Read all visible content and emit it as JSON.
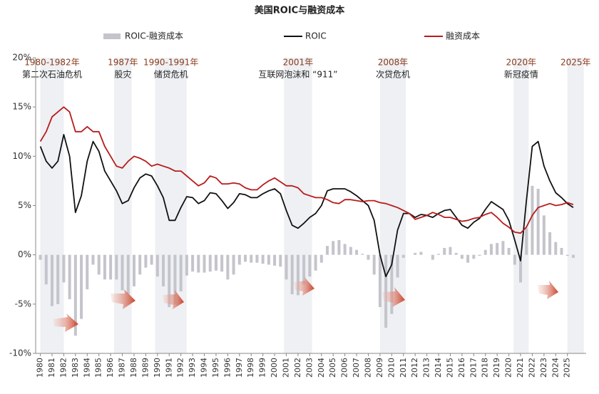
{
  "chart_data": {
    "type": "line_bar",
    "title": "美国ROIC与融资成本",
    "xlim": [
      1979.6,
      2026.6
    ],
    "xticks": [
      1980,
      1981,
      1982,
      1983,
      1984,
      1985,
      1986,
      1987,
      1988,
      1989,
      1990,
      1991,
      1992,
      1993,
      1994,
      1995,
      1996,
      1997,
      1998,
      1999,
      2000,
      2001,
      2002,
      2003,
      2004,
      2005,
      2006,
      2007,
      2008,
      2009,
      2010,
      2011,
      2012,
      2013,
      2014,
      2015,
      2016,
      2017,
      2018,
      2019,
      2020,
      2021,
      2022,
      2023,
      2024,
      2025
    ],
    "ylim": [
      -10,
      20
    ],
    "yticks": [
      {
        "value": -10,
        "label": "-10%"
      },
      {
        "value": -5,
        "label": "-5%"
      },
      {
        "value": 0,
        "label": "0%"
      },
      {
        "value": 5,
        "label": "5%"
      },
      {
        "value": 10,
        "label": "10%"
      },
      {
        "value": 15,
        "label": "15%"
      },
      {
        "value": 20,
        "label": "20%"
      }
    ],
    "x": [
      1980,
      1980.5,
      1981,
      1981.5,
      1982,
      1982.5,
      1983,
      1983.5,
      1984,
      1984.5,
      1985,
      1985.5,
      1986,
      1986.5,
      1987,
      1987.5,
      1988,
      1988.5,
      1989,
      1989.5,
      1990,
      1990.5,
      1991,
      1991.5,
      1992,
      1992.5,
      1993,
      1993.5,
      1994,
      1994.5,
      1995,
      1995.5,
      1996,
      1996.5,
      1997,
      1997.5,
      1998,
      1998.5,
      1999,
      1999.5,
      2000,
      2000.5,
      2001,
      2001.5,
      2002,
      2002.5,
      2003,
      2003.5,
      2004,
      2004.5,
      2005,
      2005.5,
      2006,
      2006.5,
      2007,
      2007.5,
      2008,
      2008.5,
      2009,
      2009.5,
      2010,
      2010.5,
      2011,
      2011.5,
      2012,
      2012.5,
      2013,
      2013.5,
      2014,
      2014.5,
      2015,
      2015.5,
      2016,
      2016.5,
      2017,
      2017.5,
      2018,
      2018.5,
      2019,
      2019.5,
      2020,
      2020.5,
      2021,
      2021.5,
      2022,
      2022.5,
      2023,
      2023.5,
      2024,
      2024.5,
      2025,
      2025.5
    ],
    "series": [
      {
        "name": "ROIC-融资成本",
        "kind": "bar",
        "color": "#c4c4cc",
        "values": [
          -0.5,
          -3,
          -5.2,
          -5,
          -2.8,
          -4.5,
          -8.2,
          -6.5,
          -3.5,
          -1,
          -2,
          -2.5,
          -2.5,
          -2.5,
          -3.6,
          -4,
          -3.2,
          -2,
          -1.3,
          -1,
          -2.2,
          -3.2,
          -5.3,
          -5,
          -3.7,
          -2.1,
          -1.7,
          -1.8,
          -1.8,
          -1.7,
          -1.6,
          -1.7,
          -2.5,
          -2,
          -1,
          -0.7,
          -0.8,
          -0.8,
          -0.9,
          -1,
          -1.1,
          -1.2,
          -2.5,
          -4,
          -4.1,
          -3,
          -2.2,
          -1.6,
          -0.8,
          0.9,
          1.4,
          1.5,
          1.1,
          0.8,
          0.5,
          0.1,
          -0.5,
          -2,
          -5.3,
          -7.4,
          -6,
          -2.3,
          -0.3,
          0,
          0.2,
          0.3,
          0,
          -0.5,
          0.1,
          0.7,
          0.8,
          0.2,
          -0.4,
          -0.8,
          -0.4,
          -0.1,
          0.5,
          1.1,
          1.2,
          1.4,
          0.7,
          -1,
          -2.8,
          2.7,
          7,
          6.7,
          4,
          2.3,
          1.3,
          0.7,
          -0.1,
          -0.3
        ]
      },
      {
        "name": "ROIC",
        "kind": "line",
        "color": "#111111",
        "values": [
          11,
          9.5,
          8.8,
          9.5,
          12.2,
          10,
          4.3,
          6,
          9.5,
          11.5,
          10.5,
          8.5,
          7.5,
          6.5,
          5.2,
          5.5,
          6.8,
          7.8,
          8.2,
          8,
          7,
          5.8,
          3.5,
          3.5,
          4.8,
          5.9,
          5.8,
          5.2,
          5.5,
          6.3,
          6.2,
          5.5,
          4.7,
          5.3,
          6.2,
          6.1,
          5.8,
          5.8,
          6.2,
          6.5,
          6.7,
          6.2,
          4.5,
          3,
          2.7,
          3.2,
          3.8,
          4.2,
          5,
          6.5,
          6.7,
          6.7,
          6.7,
          6.4,
          6,
          5.5,
          5,
          3.5,
          0,
          -2.2,
          -1,
          2.5,
          4.2,
          4.2,
          3.8,
          4.1,
          4,
          3.8,
          4.2,
          4.5,
          4.6,
          3.8,
          3,
          2.7,
          3.3,
          3.7,
          4.6,
          5.4,
          5,
          4.6,
          3.5,
          1.5,
          -0.6,
          5.5,
          11,
          11.5,
          9,
          7.5,
          6.3,
          5.8,
          5.2,
          4.8
        ]
      },
      {
        "name": "融资成本",
        "kind": "line",
        "color": "#b81c1c",
        "values": [
          11.5,
          12.5,
          14,
          14.5,
          15,
          14.5,
          12.5,
          12.5,
          13,
          12.5,
          12.5,
          11,
          10,
          9,
          8.8,
          9.5,
          10,
          9.8,
          9.5,
          9,
          9.2,
          9,
          8.8,
          8.5,
          8.5,
          8,
          7.5,
          7,
          7.3,
          8,
          7.8,
          7.2,
          7.2,
          7.3,
          7.2,
          6.8,
          6.6,
          6.6,
          7.1,
          7.5,
          7.8,
          7.4,
          7,
          7,
          6.8,
          6.2,
          6,
          5.8,
          5.8,
          5.6,
          5.3,
          5.2,
          5.6,
          5.6,
          5.5,
          5.4,
          5.5,
          5.5,
          5.3,
          5.2,
          5,
          4.8,
          4.5,
          4.2,
          3.6,
          3.8,
          4,
          4.3,
          4.1,
          3.8,
          3.8,
          3.6,
          3.4,
          3.5,
          3.7,
          3.8,
          4.1,
          4.3,
          3.8,
          3.2,
          2.8,
          2.3,
          2.2,
          2.8,
          4,
          4.8,
          5,
          5.2,
          5,
          5.1,
          5.3,
          5.1
        ]
      }
    ],
    "periods": [
      {
        "year": "1980-1982年",
        "event": "第二次石油危机",
        "start": 1980,
        "end": 1982
      },
      {
        "year": "1987年",
        "event": "股灾",
        "start": 1986.3,
        "end": 1987.8
      },
      {
        "year": "1990-1991年",
        "event": "储贷危机",
        "start": 1989.8,
        "end": 1992.5
      },
      {
        "year": "2001年",
        "event": "互联网泡沫和 “911”",
        "start": 2000.8,
        "end": 2003.2
      },
      {
        "year": "2008年",
        "event": "次贷危机",
        "start": 2009,
        "end": 2011.2
      },
      {
        "year": "2020年",
        "event": "新冠疫情",
        "start": 2020.4,
        "end": 2021.7
      },
      {
        "year": "2025年",
        "start": 2025,
        "end": 2026.4
      }
    ]
  }
}
